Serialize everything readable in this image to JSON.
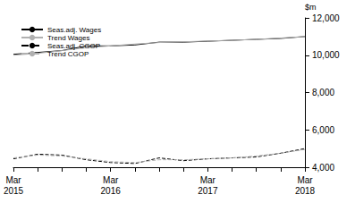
{
  "chart_data": {
    "type": "line",
    "y_label": "$m",
    "categories": [
      "Mar\n2015",
      null,
      null,
      null,
      "Mar\n2016",
      null,
      null,
      null,
      "Mar\n2017",
      null,
      null,
      null,
      "Mar\n2018"
    ],
    "series": [
      {
        "name": "Seas.adj. Wages",
        "color": "#000000",
        "line_style": "solid",
        "values": [
          10050,
          10150,
          10250,
          10500,
          10500,
          10550,
          10700,
          10700,
          10750,
          10800,
          10850,
          10900,
          11000
        ]
      },
      {
        "name": "Trend Wages",
        "color": "#b0b0b0",
        "line_style": "solid",
        "values": [
          10000,
          10100,
          10250,
          10400,
          10500,
          10600,
          10680,
          10720,
          10760,
          10800,
          10850,
          10920,
          11000
        ]
      },
      {
        "name": "Seas.adj. CGOP",
        "color": "#000000",
        "line_style": "dashed",
        "values": [
          4450,
          4700,
          4650,
          4400,
          4250,
          4200,
          4500,
          4350,
          4450,
          4500,
          4550,
          4750,
          5000
        ]
      },
      {
        "name": "Trend CGOP",
        "color": "#b0b0b0",
        "line_style": "dashed",
        "values": [
          4500,
          4650,
          4600,
          4450,
          4300,
          4250,
          4400,
          4400,
          4450,
          4500,
          4600,
          4750,
          4950
        ]
      }
    ],
    "ylim": [
      4000,
      12000
    ],
    "yticks": [
      4000,
      6000,
      8000,
      10000,
      12000
    ],
    "grid": false,
    "legend": "top-left"
  }
}
